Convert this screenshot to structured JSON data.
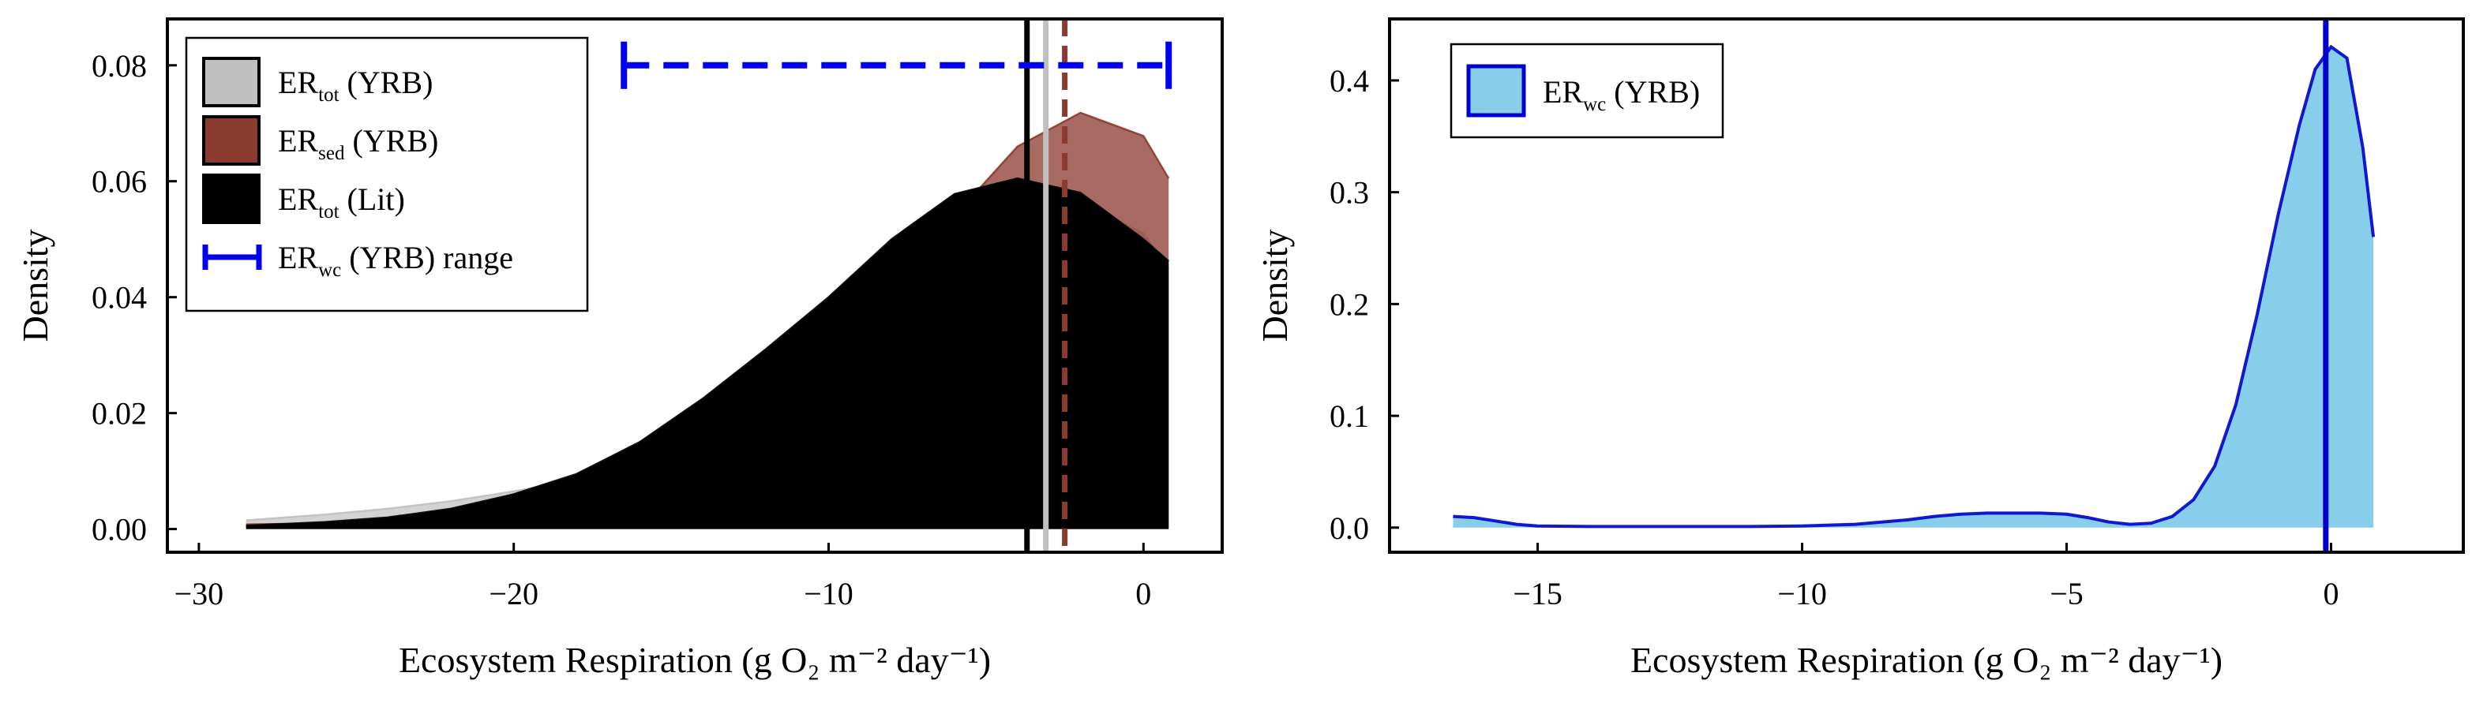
{
  "chart_data": [
    {
      "type": "area",
      "title": "",
      "xlabel": "Ecosystem Respiration (g O₂ m⁻² day⁻¹)",
      "ylabel": "Density",
      "xlim": [
        -31,
        2.5
      ],
      "ylim": [
        -0.004,
        0.088
      ],
      "xticks": [
        -30,
        -20,
        -10,
        0
      ],
      "xtick_labels": [
        "−30",
        "−20",
        "−10",
        "0"
      ],
      "yticks": [
        0,
        0.02,
        0.04,
        0.06,
        0.08
      ],
      "ytick_labels": [
        "0.00",
        "0.02",
        "0.04",
        "0.06",
        "0.08"
      ],
      "legend_position": "top-left",
      "series": [
        {
          "name": "ER_tot (YRB)",
          "legend_main": "ER",
          "legend_sub": "tot",
          "legend_suffix": " (YRB)",
          "color": "#c0c0c0",
          "opacity": 0.7,
          "x": [
            -28.5,
            -26,
            -24,
            -22,
            -20,
            -18,
            -16,
            -14,
            -12,
            -10,
            -8,
            -6,
            -4,
            -2,
            0,
            0.8
          ],
          "y": [
            0.0015,
            0.0025,
            0.0035,
            0.0048,
            0.0065,
            0.0085,
            0.0115,
            0.0165,
            0.0235,
            0.032,
            0.041,
            0.049,
            0.0545,
            0.0562,
            0.051,
            0.0448
          ]
        },
        {
          "name": "ER_sed (YRB)",
          "legend_main": "ER",
          "legend_sub": "sed",
          "legend_suffix": " (YRB)",
          "color": "#8b3a2f",
          "opacity": 0.75,
          "x": [
            -28.5,
            -26,
            -24,
            -22,
            -20,
            -18,
            -16,
            -14,
            -12,
            -10,
            -8,
            -6,
            -4,
            -2,
            0,
            0.8
          ],
          "y": [
            0.0008,
            0.001,
            0.0012,
            0.0017,
            0.0025,
            0.004,
            0.007,
            0.012,
            0.02,
            0.03,
            0.041,
            0.054,
            0.066,
            0.0718,
            0.0678,
            0.0605
          ]
        },
        {
          "name": "ER_tot (Lit)",
          "legend_main": "ER",
          "legend_sub": "tot",
          "legend_suffix": " (Lit)",
          "color": "#000000",
          "opacity": 1.0,
          "x": [
            -28.5,
            -26,
            -24,
            -22,
            -20,
            -18,
            -16,
            -14,
            -12,
            -10,
            -8,
            -6,
            -4,
            -2,
            0,
            0.8
          ],
          "y": [
            0.0006,
            0.0012,
            0.002,
            0.0035,
            0.006,
            0.0095,
            0.015,
            0.0225,
            0.031,
            0.04,
            0.05,
            0.0578,
            0.0605,
            0.058,
            0.05,
            0.0462
          ]
        }
      ],
      "range_marker": {
        "name": "ER_wc (YRB) range",
        "legend_main": "ER",
        "legend_sub": "wc",
        "legend_suffix": " (YRB) range",
        "color": "#0000ee",
        "x_range": [
          -16.5,
          0.8
        ],
        "y": 0.08
      },
      "vertical_lines": [
        {
          "x": -3.7,
          "color": "#000000",
          "style": "solid"
        },
        {
          "x": -3.1,
          "color": "#c0c0c0",
          "style": "solid"
        },
        {
          "x": -2.5,
          "color": "#8b3a2f",
          "style": "dashed"
        }
      ]
    },
    {
      "type": "area",
      "title": "",
      "xlabel": "Ecosystem Respiration (g O₂ m⁻² day⁻¹)",
      "ylabel": "Density",
      "xlim": [
        -17.8,
        2.5
      ],
      "ylim": [
        -0.022,
        0.455
      ],
      "xticks": [
        -15,
        -10,
        -5,
        0
      ],
      "xtick_labels": [
        "−15",
        "−10",
        "−5",
        "0"
      ],
      "yticks": [
        0,
        0.1,
        0.2,
        0.3,
        0.4
      ],
      "ytick_labels": [
        "0.0",
        "0.1",
        "0.2",
        "0.3",
        "0.4"
      ],
      "legend_position": "top-left",
      "series": [
        {
          "name": "ER_wc (YRB)",
          "legend_main": "ER",
          "legend_sub": "wc",
          "legend_suffix": " (YRB)",
          "color": "#87ceeb",
          "line_color": "#0000cd",
          "x": [
            -16.6,
            -16.2,
            -15.8,
            -15.4,
            -15,
            -14,
            -13,
            -12,
            -11,
            -10,
            -9,
            -8,
            -7.5,
            -7,
            -6.5,
            -6,
            -5.5,
            -5,
            -4.6,
            -4.2,
            -3.8,
            -3.4,
            -3,
            -2.6,
            -2.2,
            -1.8,
            -1.4,
            -1.0,
            -0.6,
            -0.3,
            0,
            0.3,
            0.6,
            0.8
          ],
          "y": [
            0.01,
            0.009,
            0.006,
            0.003,
            0.0015,
            0.001,
            0.001,
            0.001,
            0.001,
            0.0015,
            0.003,
            0.007,
            0.01,
            0.012,
            0.013,
            0.013,
            0.013,
            0.012,
            0.009,
            0.005,
            0.003,
            0.004,
            0.01,
            0.025,
            0.055,
            0.11,
            0.19,
            0.28,
            0.36,
            0.41,
            0.43,
            0.42,
            0.34,
            0.26
          ]
        }
      ],
      "vertical_lines": [
        {
          "x": -0.1,
          "color": "#0000cd",
          "style": "solid"
        }
      ]
    }
  ]
}
